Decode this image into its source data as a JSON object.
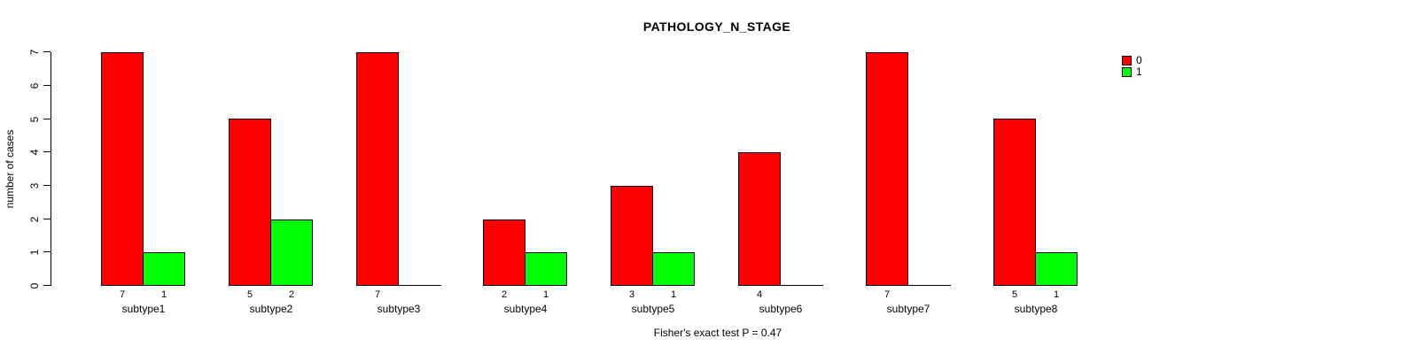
{
  "chart_data": {
    "type": "bar",
    "title": "PATHOLOGY_N_STAGE",
    "categories": [
      "subtype1",
      "subtype2",
      "subtype3",
      "subtype4",
      "subtype5",
      "subtype6",
      "subtype7",
      "subtype8"
    ],
    "series": [
      {
        "name": "0",
        "color": "#FF0000",
        "values": [
          7,
          5,
          7,
          2,
          3,
          4,
          7,
          5
        ]
      },
      {
        "name": "1",
        "color": "#00FF00",
        "values": [
          1,
          2,
          0,
          1,
          1,
          0,
          0,
          1
        ]
      }
    ],
    "ylabel": "number of cases",
    "xlabel": "",
    "ylim": [
      0,
      7
    ],
    "yticks": [
      0,
      1,
      2,
      3,
      4,
      5,
      6,
      7
    ],
    "grid": false,
    "legend_position": "top-right",
    "bar_value_labels": "counts shown under each bar; zero-value bars drawn as baseline segment with no count label",
    "annotation": "Fisher's exact test P = 0.47"
  }
}
